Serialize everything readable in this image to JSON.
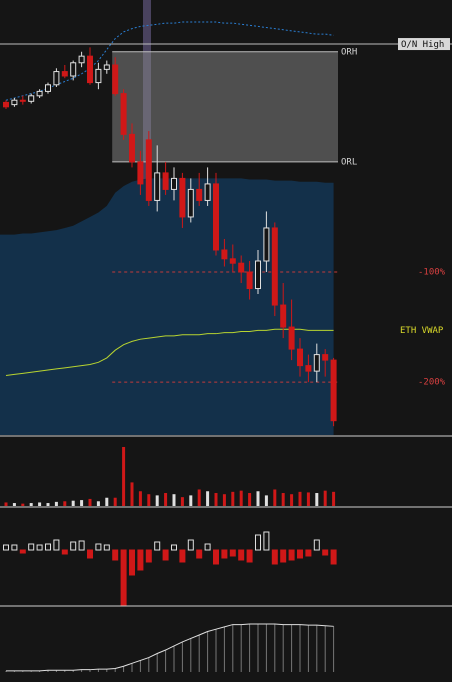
{
  "chart_data": {
    "type": "candlestick",
    "ylim": [
      -248,
      147
    ],
    "yticks": [
      {
        "value": -100,
        "label": "-100%"
      },
      {
        "value": -200,
        "label": "-200%"
      }
    ],
    "levels": [
      {
        "label": "ORH",
        "value": 100
      },
      {
        "label": "ORL",
        "value": 0
      },
      {
        "label": "O/N High",
        "value": 107
      }
    ],
    "vwap_label": "ETH VWAP",
    "colors": {
      "up": "#e0e0e0",
      "down": "#d01818",
      "vwap": "#b8d430",
      "band": "#2a7fd4",
      "area": "#13304a"
    },
    "open": [
      54,
      52,
      56,
      55,
      60,
      64,
      70,
      82,
      78,
      90,
      96,
      72,
      84,
      88,
      62,
      25,
      0,
      20,
      -35,
      -10,
      -25,
      -15,
      -50,
      -25,
      -35,
      -20,
      -80,
      -88,
      -92,
      -100,
      -115,
      -90,
      -60,
      -130,
      -150,
      -170,
      -185,
      -190,
      -175,
      -180
    ],
    "high": [
      56,
      58,
      60,
      62,
      66,
      72,
      85,
      88,
      92,
      100,
      104,
      90,
      92,
      95,
      66,
      35,
      10,
      28,
      15,
      0,
      -5,
      -10,
      -15,
      -10,
      -5,
      -10,
      -70,
      -75,
      -85,
      -90,
      -80,
      -45,
      -55,
      -110,
      -125,
      -160,
      -175,
      -165,
      -170,
      -178
    ],
    "low": [
      48,
      50,
      52,
      53,
      58,
      62,
      68,
      76,
      74,
      86,
      70,
      66,
      80,
      60,
      20,
      -5,
      -30,
      -40,
      -45,
      -30,
      -35,
      -60,
      -55,
      -40,
      -40,
      -85,
      -95,
      -100,
      -110,
      -125,
      -120,
      -100,
      -140,
      -160,
      -180,
      -195,
      -200,
      -200,
      -195,
      -240
    ],
    "close": [
      50,
      56,
      55,
      60,
      64,
      70,
      82,
      78,
      90,
      96,
      72,
      84,
      88,
      62,
      25,
      0,
      -20,
      -35,
      -10,
      -25,
      -15,
      -50,
      -25,
      -35,
      -20,
      -80,
      -88,
      -92,
      -100,
      -115,
      -90,
      -60,
      -130,
      -150,
      -170,
      -185,
      -190,
      -175,
      -180,
      -235
    ],
    "vwap": [
      -194,
      -193,
      -192,
      -191,
      -190,
      -189,
      -188,
      -187,
      -186,
      -185,
      -184,
      -182,
      -178,
      -171,
      -166,
      -163,
      -161,
      -160,
      -159,
      -158,
      -158,
      -157,
      -157,
      -157,
      -156,
      -156,
      -155,
      -155,
      -154,
      -154,
      -153,
      -153,
      -152,
      -152,
      -152,
      -152,
      -153,
      -153,
      -153,
      -153
    ],
    "upper_band": [
      56,
      58,
      60,
      62,
      64,
      67,
      70,
      73,
      76,
      80,
      85,
      92,
      102,
      112,
      118,
      121,
      123,
      124,
      125,
      126,
      126,
      127,
      127,
      127,
      127,
      127,
      126,
      126,
      125,
      124,
      123,
      122,
      121,
      120,
      119,
      118,
      117,
      116,
      116,
      115
    ],
    "area_top": [
      -66,
      -66,
      -65,
      -65,
      -64,
      -63,
      -62,
      -60,
      -58,
      -54,
      -50,
      -46,
      -40,
      -28,
      -22,
      -18,
      -16,
      -15,
      -15,
      -15,
      -15,
      -15,
      -15,
      -15,
      -15,
      -15,
      -15,
      -15,
      -15,
      -16,
      -16,
      -16,
      -17,
      -17,
      -17,
      -18,
      -18,
      -18,
      -19,
      -19
    ],
    "volume": [
      6,
      5,
      4,
      5,
      6,
      5,
      7,
      8,
      9,
      10,
      12,
      8,
      14,
      14,
      100,
      40,
      25,
      20,
      18,
      22,
      20,
      15,
      18,
      28,
      25,
      22,
      20,
      24,
      26,
      22,
      25,
      18,
      28,
      22,
      20,
      24,
      23,
      22,
      26,
      24
    ],
    "delta": [
      5,
      5,
      -3,
      6,
      5,
      6,
      10,
      -4,
      8,
      9,
      -8,
      6,
      5,
      -10,
      -55,
      -25,
      -20,
      -12,
      8,
      -10,
      5,
      -12,
      10,
      -8,
      6,
      -14,
      -8,
      -6,
      -10,
      -12,
      15,
      18,
      -14,
      -12,
      -10,
      -8,
      -6,
      10,
      -5,
      -14
    ],
    "cumulative": [
      2,
      2,
      2,
      2,
      2,
      3,
      3,
      3,
      3,
      4,
      4,
      5,
      5,
      6,
      10,
      15,
      20,
      25,
      32,
      38,
      45,
      52,
      58,
      64,
      70,
      74,
      78,
      82,
      82,
      83,
      83,
      83,
      83,
      82,
      82,
      82,
      81,
      81,
      80,
      79
    ]
  }
}
